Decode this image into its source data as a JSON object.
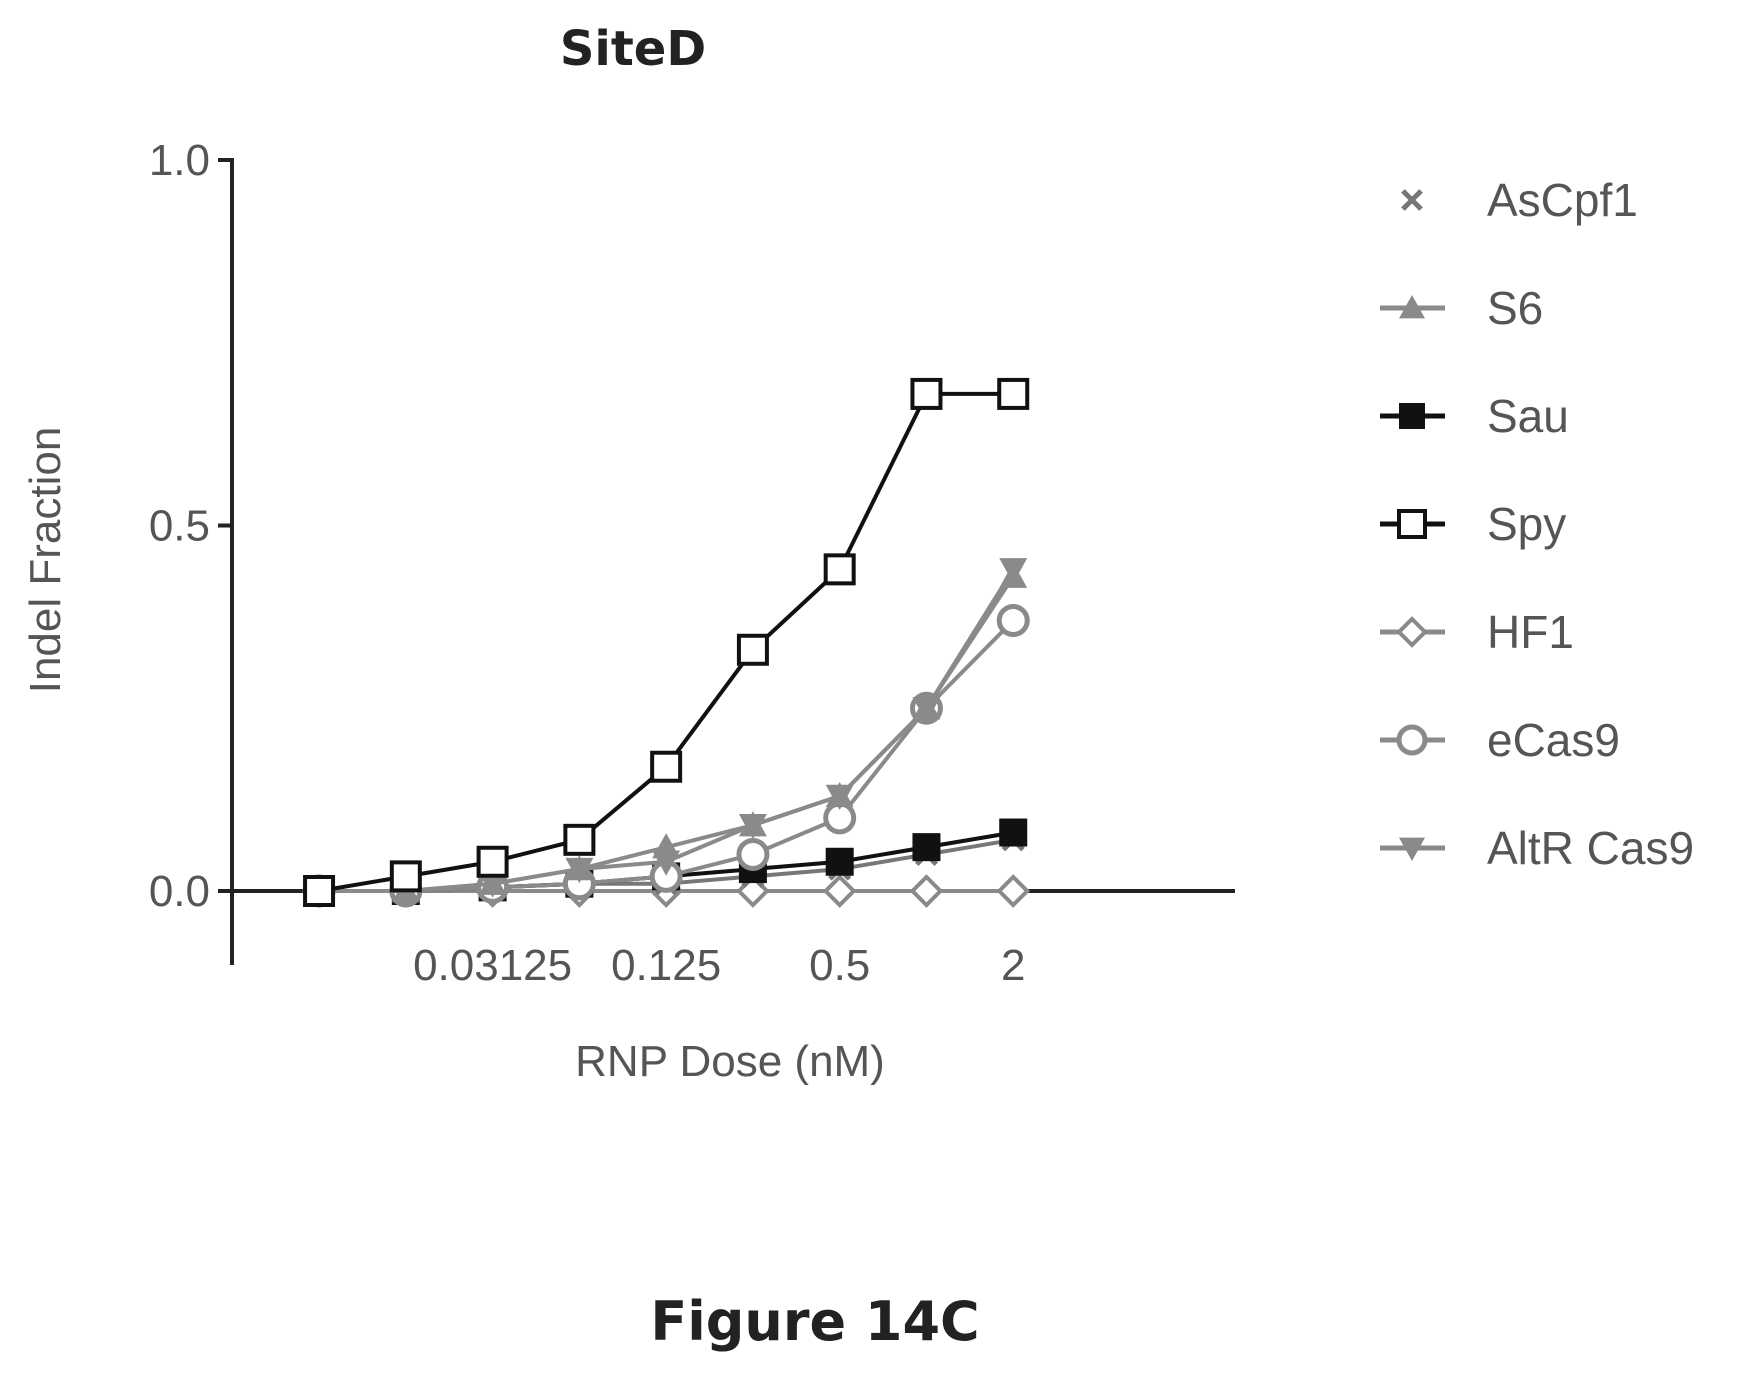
{
  "chart_data": {
    "type": "line",
    "title": "SiteD",
    "xlabel": "RNP Dose (nM)",
    "ylabel": "Indel Fraction",
    "x_scale": "log2",
    "xlim": [
      0.0045,
      4
    ],
    "ylim": [
      -0.1,
      1.0
    ],
    "x_ticks": [
      0.03125,
      0.125,
      0.5,
      2
    ],
    "x_tick_labels": [
      "0.03125",
      "0.125",
      "0.5",
      "2"
    ],
    "y_ticks": [
      0.0,
      0.5,
      1.0
    ],
    "y_tick_labels": [
      "0.0",
      "0.5",
      "1.0"
    ],
    "x": [
      0.0078125,
      0.015625,
      0.03125,
      0.0625,
      0.125,
      0.25,
      0.5,
      1,
      2
    ],
    "series": [
      {
        "name": "AsCpf1",
        "marker": "x",
        "color": "#777777",
        "values": [
          0.0,
          0.0,
          0.005,
          0.01,
          0.01,
          0.02,
          0.03,
          0.05,
          0.07
        ]
      },
      {
        "name": "S6",
        "marker": "triangle-up",
        "color": "#8a8a8a",
        "values": [
          0.0,
          0.0,
          0.01,
          0.03,
          0.06,
          0.09,
          0.13,
          0.25,
          0.43
        ]
      },
      {
        "name": "Sau",
        "marker": "square-filled",
        "color": "#111111",
        "values": [
          0.0,
          0.0,
          0.005,
          0.01,
          0.02,
          0.03,
          0.04,
          0.06,
          0.08
        ]
      },
      {
        "name": "Spy",
        "marker": "square-open",
        "color": "#111111",
        "values": [
          0.0,
          0.02,
          0.04,
          0.07,
          0.17,
          0.33,
          0.44,
          0.68,
          0.68
        ]
      },
      {
        "name": "HF1",
        "marker": "diamond",
        "color": "#8a8a8a",
        "values": [
          0.0,
          0.0,
          0.0,
          0.0,
          0.0,
          0.0,
          0.0,
          0.0,
          0.0
        ]
      },
      {
        "name": "eCas9",
        "marker": "circle-open",
        "color": "#8a8a8a",
        "values": [
          0.0,
          0.0,
          0.005,
          0.01,
          0.02,
          0.05,
          0.1,
          0.25,
          0.37
        ]
      },
      {
        "name": "AltR Cas9",
        "marker": "triangle-down",
        "color": "#8a8a8a",
        "values": [
          0.0,
          0.0,
          0.01,
          0.03,
          0.04,
          0.09,
          0.13,
          0.25,
          0.44
        ]
      }
    ],
    "legend_position": "right"
  },
  "caption": "Figure 14C"
}
